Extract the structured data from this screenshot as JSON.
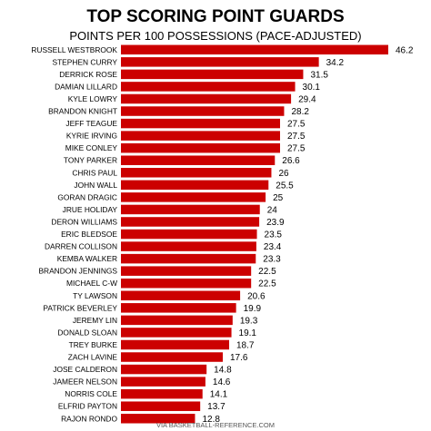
{
  "chart_data": {
    "type": "bar",
    "orientation": "horizontal",
    "title": "TOP SCORING POINT GUARDS",
    "subtitle": "POINTS PER 100 POSSESSIONS (PACE-ADJUSTED)",
    "source": "VIA BASKETBALL-REFERENCE.COM",
    "bar_color": "#cc0000",
    "categories": [
      "RUSSELL WESTBROOK",
      "STEPHEN CURRY",
      "DERRICK ROSE",
      "DAMIAN LILLARD",
      "KYLE LOWRY",
      "BRANDON KNIGHT",
      "JEFF TEAGUE",
      "KYRIE IRVING",
      "MIKE CONLEY",
      "TONY PARKER",
      "CHRIS PAUL",
      "JOHN WALL",
      "GORAN DRAGIC",
      "JRUE HOLIDAY",
      "DERON WILLIAMS",
      "ERIC BLEDSOE",
      "DARREN COLLISON",
      "KEMBA WALKER",
      "BRANDON JENNINGS",
      "MICHAEL C-W",
      "TY LAWSON",
      "PATRICK BEVERLEY",
      "JEREMY LIN",
      "DONALD SLOAN",
      "TREY BURKE",
      "ZACH LAVINE",
      "JOSE CALDERON",
      "JAMEER NELSON",
      "NORRIS COLE",
      "ELFRID PAYTON",
      "RAJON RONDO"
    ],
    "values": [
      46.2,
      34.2,
      31.5,
      30.1,
      29.4,
      28.2,
      27.5,
      27.5,
      27.5,
      26.6,
      26,
      25.5,
      25,
      24,
      23.9,
      23.5,
      23.4,
      23.3,
      22.5,
      22.5,
      20.6,
      19.9,
      19.3,
      19.1,
      18.7,
      17.6,
      14.8,
      14.6,
      14.1,
      13.7,
      12.8
    ],
    "value_labels": [
      "46.2",
      "34.2",
      "31.5",
      "30.1",
      "29.4",
      "28.2",
      "27.5",
      "27.5",
      "27.5",
      "26.6",
      "26",
      "25.5",
      "25",
      "24",
      "23.9",
      "23.5",
      "23.4",
      "23.3",
      "22.5",
      "22.5",
      "20.6",
      "19.9",
      "19.3",
      "19.1",
      "18.7",
      "17.6",
      "14.8",
      "14.6",
      "14.1",
      "13.7",
      "12.8"
    ],
    "xlim": [
      0,
      46.2
    ]
  }
}
